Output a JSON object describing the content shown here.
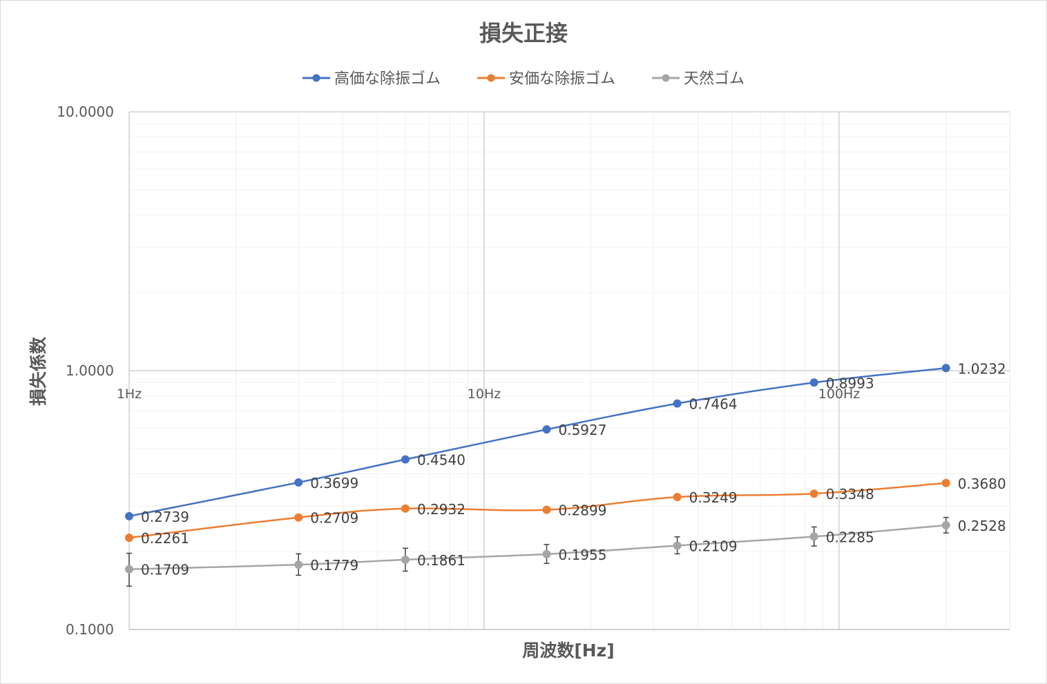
{
  "chart_data": {
    "type": "line",
    "title": "損失正接",
    "xlabel": "周波数[Hz]",
    "ylabel": "損失係数",
    "x_scale": "log",
    "y_scale": "log",
    "xlim": [
      1,
      200
    ],
    "ylim": [
      0.1,
      10
    ],
    "x_ticks": [
      {
        "value": 1,
        "label": "1Hz"
      },
      {
        "value": 10,
        "label": "10Hz"
      },
      {
        "value": 100,
        "label": "100Hz"
      }
    ],
    "y_ticks": [
      {
        "value": 10,
        "label": "10.0000"
      },
      {
        "value": 1,
        "label": "1.0000"
      },
      {
        "value": 0.1,
        "label": "0.1000"
      }
    ],
    "grid": true,
    "legend_position": "top",
    "x": [
      1,
      3,
      6,
      15,
      35,
      85,
      200
    ],
    "series": [
      {
        "name": "高価な除振ゴム",
        "color": "#4472c4",
        "values": [
          0.2739,
          0.3699,
          0.454,
          0.5927,
          0.7464,
          0.8993,
          1.0232
        ],
        "labels": [
          "0.2739",
          "0.3699",
          "0.4540",
          "0.5927",
          "0.7464",
          "0.8993",
          "1.0232"
        ]
      },
      {
        "name": "安価な除振ゴム",
        "color": "#ed7d31",
        "values": [
          0.2261,
          0.2709,
          0.2932,
          0.2899,
          0.3249,
          0.3348,
          0.368
        ],
        "labels": [
          "0.2261",
          "0.2709",
          "0.2932",
          "0.2899",
          "0.3249",
          "0.3348",
          "0.3680"
        ]
      },
      {
        "name": "天然ゴム",
        "color": "#a5a5a5",
        "values": [
          0.1709,
          0.1779,
          0.1861,
          0.1955,
          0.2109,
          0.2285,
          0.2528
        ],
        "labels": [
          "0.1709",
          "0.1779",
          "0.1861",
          "0.1955",
          "0.2109",
          "0.2285",
          "0.2528"
        ],
        "error_bars": [
          [
            0.147,
            0.197
          ],
          [
            0.162,
            0.196
          ],
          [
            0.168,
            0.206
          ],
          [
            0.18,
            0.213
          ],
          [
            0.196,
            0.228
          ],
          [
            0.21,
            0.249
          ],
          [
            0.236,
            0.271
          ]
        ]
      }
    ]
  }
}
